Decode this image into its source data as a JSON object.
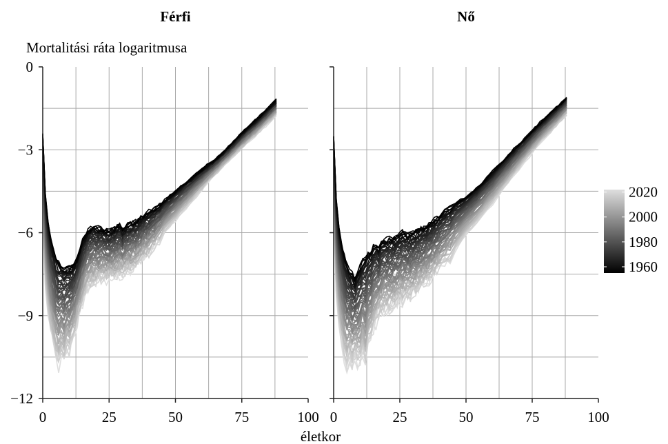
{
  "chart_data": {
    "type": "line",
    "panels": [
      {
        "title": "Férfi",
        "series_from": 1955,
        "series_to": 2022,
        "curve_keys": {
          "early": {
            "year": 1955,
            "x": [
              0,
              1,
              2,
              3,
              4,
              5,
              6,
              7,
              8,
              9,
              10,
              11,
              12,
              13,
              14,
              15,
              16,
              17,
              18,
              19,
              20,
              21,
              22,
              23,
              24,
              25,
              27,
              29,
              30,
              32,
              35,
              40,
              45,
              50,
              55,
              60,
              65,
              70,
              75,
              80,
              85,
              89
            ],
            "y": [
              -2.4,
              -4.6,
              -5.6,
              -6.2,
              -6.6,
              -6.9,
              -7.1,
              -7.2,
              -7.3,
              -7.3,
              -7.25,
              -7.2,
              -7.1,
              -6.9,
              -6.6,
              -6.3,
              -6.1,
              -5.95,
              -5.85,
              -5.8,
              -5.8,
              -5.85,
              -5.85,
              -5.9,
              -5.9,
              -5.95,
              -5.85,
              -5.7,
              -5.9,
              -5.7,
              -5.6,
              -5.25,
              -4.9,
              -4.5,
              -4.1,
              -3.7,
              -3.35,
              -2.9,
              -2.4,
              -1.95,
              -1.5,
              -1.1
            ]
          },
          "late": {
            "year": 2022,
            "x": [
              0,
              1,
              2,
              3,
              4,
              5,
              6,
              7,
              8,
              9,
              10,
              11,
              12,
              13,
              14,
              15,
              16,
              17,
              18,
              19,
              20,
              22,
              25,
              27,
              30,
              33,
              35,
              40,
              45,
              50,
              55,
              60,
              65,
              70,
              75,
              80,
              85,
              89
            ],
            "y": [
              -4.9,
              -8.0,
              -9.0,
              -9.6,
              -10.1,
              -10.5,
              -10.8,
              -10.4,
              -10.6,
              -10.2,
              -10.3,
              -10.0,
              -9.7,
              -9.2,
              -8.9,
              -8.5,
              -8.2,
              -8.0,
              -7.9,
              -7.85,
              -7.8,
              -7.7,
              -7.6,
              -7.55,
              -7.45,
              -7.3,
              -7.15,
              -6.7,
              -6.1,
              -5.55,
              -5.0,
              -4.45,
              -3.9,
              -3.4,
              -2.95,
              -2.5,
              -2.05,
              -1.65
            ]
          }
        }
      },
      {
        "title": "Nő",
        "series_from": 1955,
        "series_to": 2022,
        "curve_keys": {
          "early": {
            "year": 1955,
            "x": [
              0,
              1,
              2,
              3,
              4,
              5,
              6,
              7,
              8,
              9,
              10,
              11,
              12,
              13,
              14,
              15,
              16,
              17,
              18,
              19,
              20,
              22,
              24,
              26,
              28,
              30,
              35,
              40,
              45,
              50,
              55,
              60,
              65,
              70,
              75,
              80,
              85,
              88
            ],
            "y": [
              -2.5,
              -4.8,
              -5.8,
              -6.4,
              -6.8,
              -7.1,
              -7.35,
              -7.5,
              -7.7,
              -7.4,
              -7.2,
              -7.0,
              -6.9,
              -6.75,
              -6.7,
              -6.5,
              -6.45,
              -6.6,
              -6.35,
              -6.3,
              -6.25,
              -6.2,
              -6.15,
              -6.0,
              -6.05,
              -6.0,
              -5.75,
              -5.4,
              -5.0,
              -4.7,
              -4.3,
              -3.8,
              -3.3,
              -2.8,
              -2.3,
              -1.85,
              -1.4,
              -1.1
            ]
          },
          "late": {
            "year": 2022,
            "x": [
              0,
              1,
              2,
              3,
              4,
              5,
              6,
              7,
              8,
              9,
              10,
              11,
              12,
              13,
              14,
              15,
              16,
              17,
              18,
              20,
              22,
              25,
              28,
              30,
              35,
              40,
              45,
              50,
              55,
              60,
              65,
              70,
              75,
              80,
              85,
              88
            ],
            "y": [
              -5.0,
              -8.3,
              -9.4,
              -10.0,
              -10.5,
              -10.8,
              -10.5,
              -10.8,
              -10.5,
              -10.7,
              -10.6,
              -10.3,
              -10.8,
              -10.0,
              -9.8,
              -9.5,
              -9.3,
              -9.0,
              -8.9,
              -8.8,
              -8.7,
              -8.5,
              -8.35,
              -8.2,
              -7.8,
              -7.3,
              -6.8,
              -6.1,
              -5.55,
              -4.95,
              -4.3,
              -3.7,
              -3.1,
              -2.55,
              -2.05,
              -1.75
            ]
          }
        }
      }
    ],
    "xlabel": "életkor",
    "ylabel": "Mortalitási ráta logaritmusa",
    "xlim": [
      0,
      100
    ],
    "ylim": [
      -12,
      0
    ],
    "xticks": [
      0,
      25,
      50,
      75,
      100
    ],
    "yticks": [
      0,
      -3,
      -6,
      -9,
      -12
    ],
    "grid": true,
    "legend": {
      "placement": "right",
      "type": "colorbar",
      "ticks": [
        2020,
        2000,
        1980,
        1960
      ],
      "range": [
        1955,
        2022
      ],
      "color_low": "#000000",
      "color_high": "#dedede"
    }
  }
}
